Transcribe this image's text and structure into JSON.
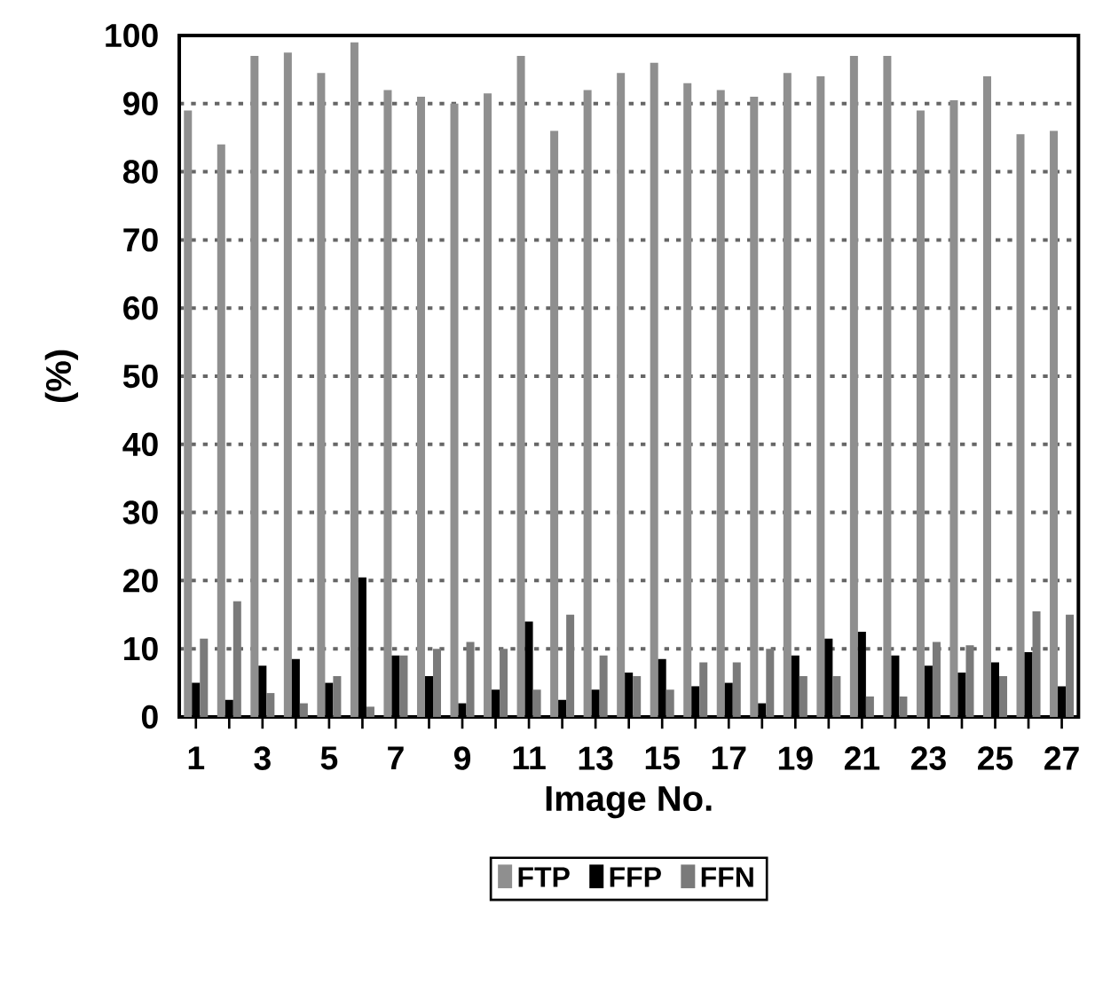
{
  "chart_data": {
    "type": "bar",
    "xlabel": "Image No.",
    "ylabel": "(%)",
    "categories": [
      "1",
      null,
      "3",
      null,
      "5",
      null,
      "7",
      null,
      "9",
      null,
      "11",
      null,
      "13",
      null,
      "15",
      null,
      "17",
      null,
      "19",
      null,
      "21",
      null,
      "23",
      null,
      "25",
      null,
      "27"
    ],
    "series": [
      {
        "name": "FTP",
        "color": "#8f8f8f",
        "values": [
          89,
          84,
          97,
          97.5,
          94.5,
          99,
          92,
          91,
          90,
          91.5,
          97,
          86,
          92,
          94.5,
          96,
          93,
          92,
          91,
          94.5,
          94,
          97,
          97,
          89,
          90.5,
          94,
          85.5,
          86
        ]
      },
      {
        "name": "FFP",
        "color": "#000000",
        "values": [
          5,
          2.5,
          7.5,
          8.5,
          5,
          20.5,
          9,
          6,
          2,
          4,
          14,
          2.5,
          4,
          6.5,
          8.5,
          4.5,
          5,
          2,
          9,
          11.5,
          12.5,
          9,
          7.5,
          6.5,
          8,
          9.5,
          4.5
        ]
      },
      {
        "name": "FFN",
        "color": "#7a7a7a",
        "values": [
          11.5,
          17,
          3.5,
          2,
          6,
          1.5,
          9,
          10,
          11,
          10,
          4,
          15,
          9,
          6,
          4,
          8,
          8,
          10,
          6,
          6,
          3,
          3,
          11,
          10.5,
          6,
          15.5,
          15
        ]
      }
    ],
    "ylim": [
      0,
      100
    ],
    "yticks": [
      0,
      10,
      20,
      30,
      40,
      50,
      60,
      70,
      80,
      90,
      100
    ],
    "grid": "y",
    "legend": "bottom"
  }
}
